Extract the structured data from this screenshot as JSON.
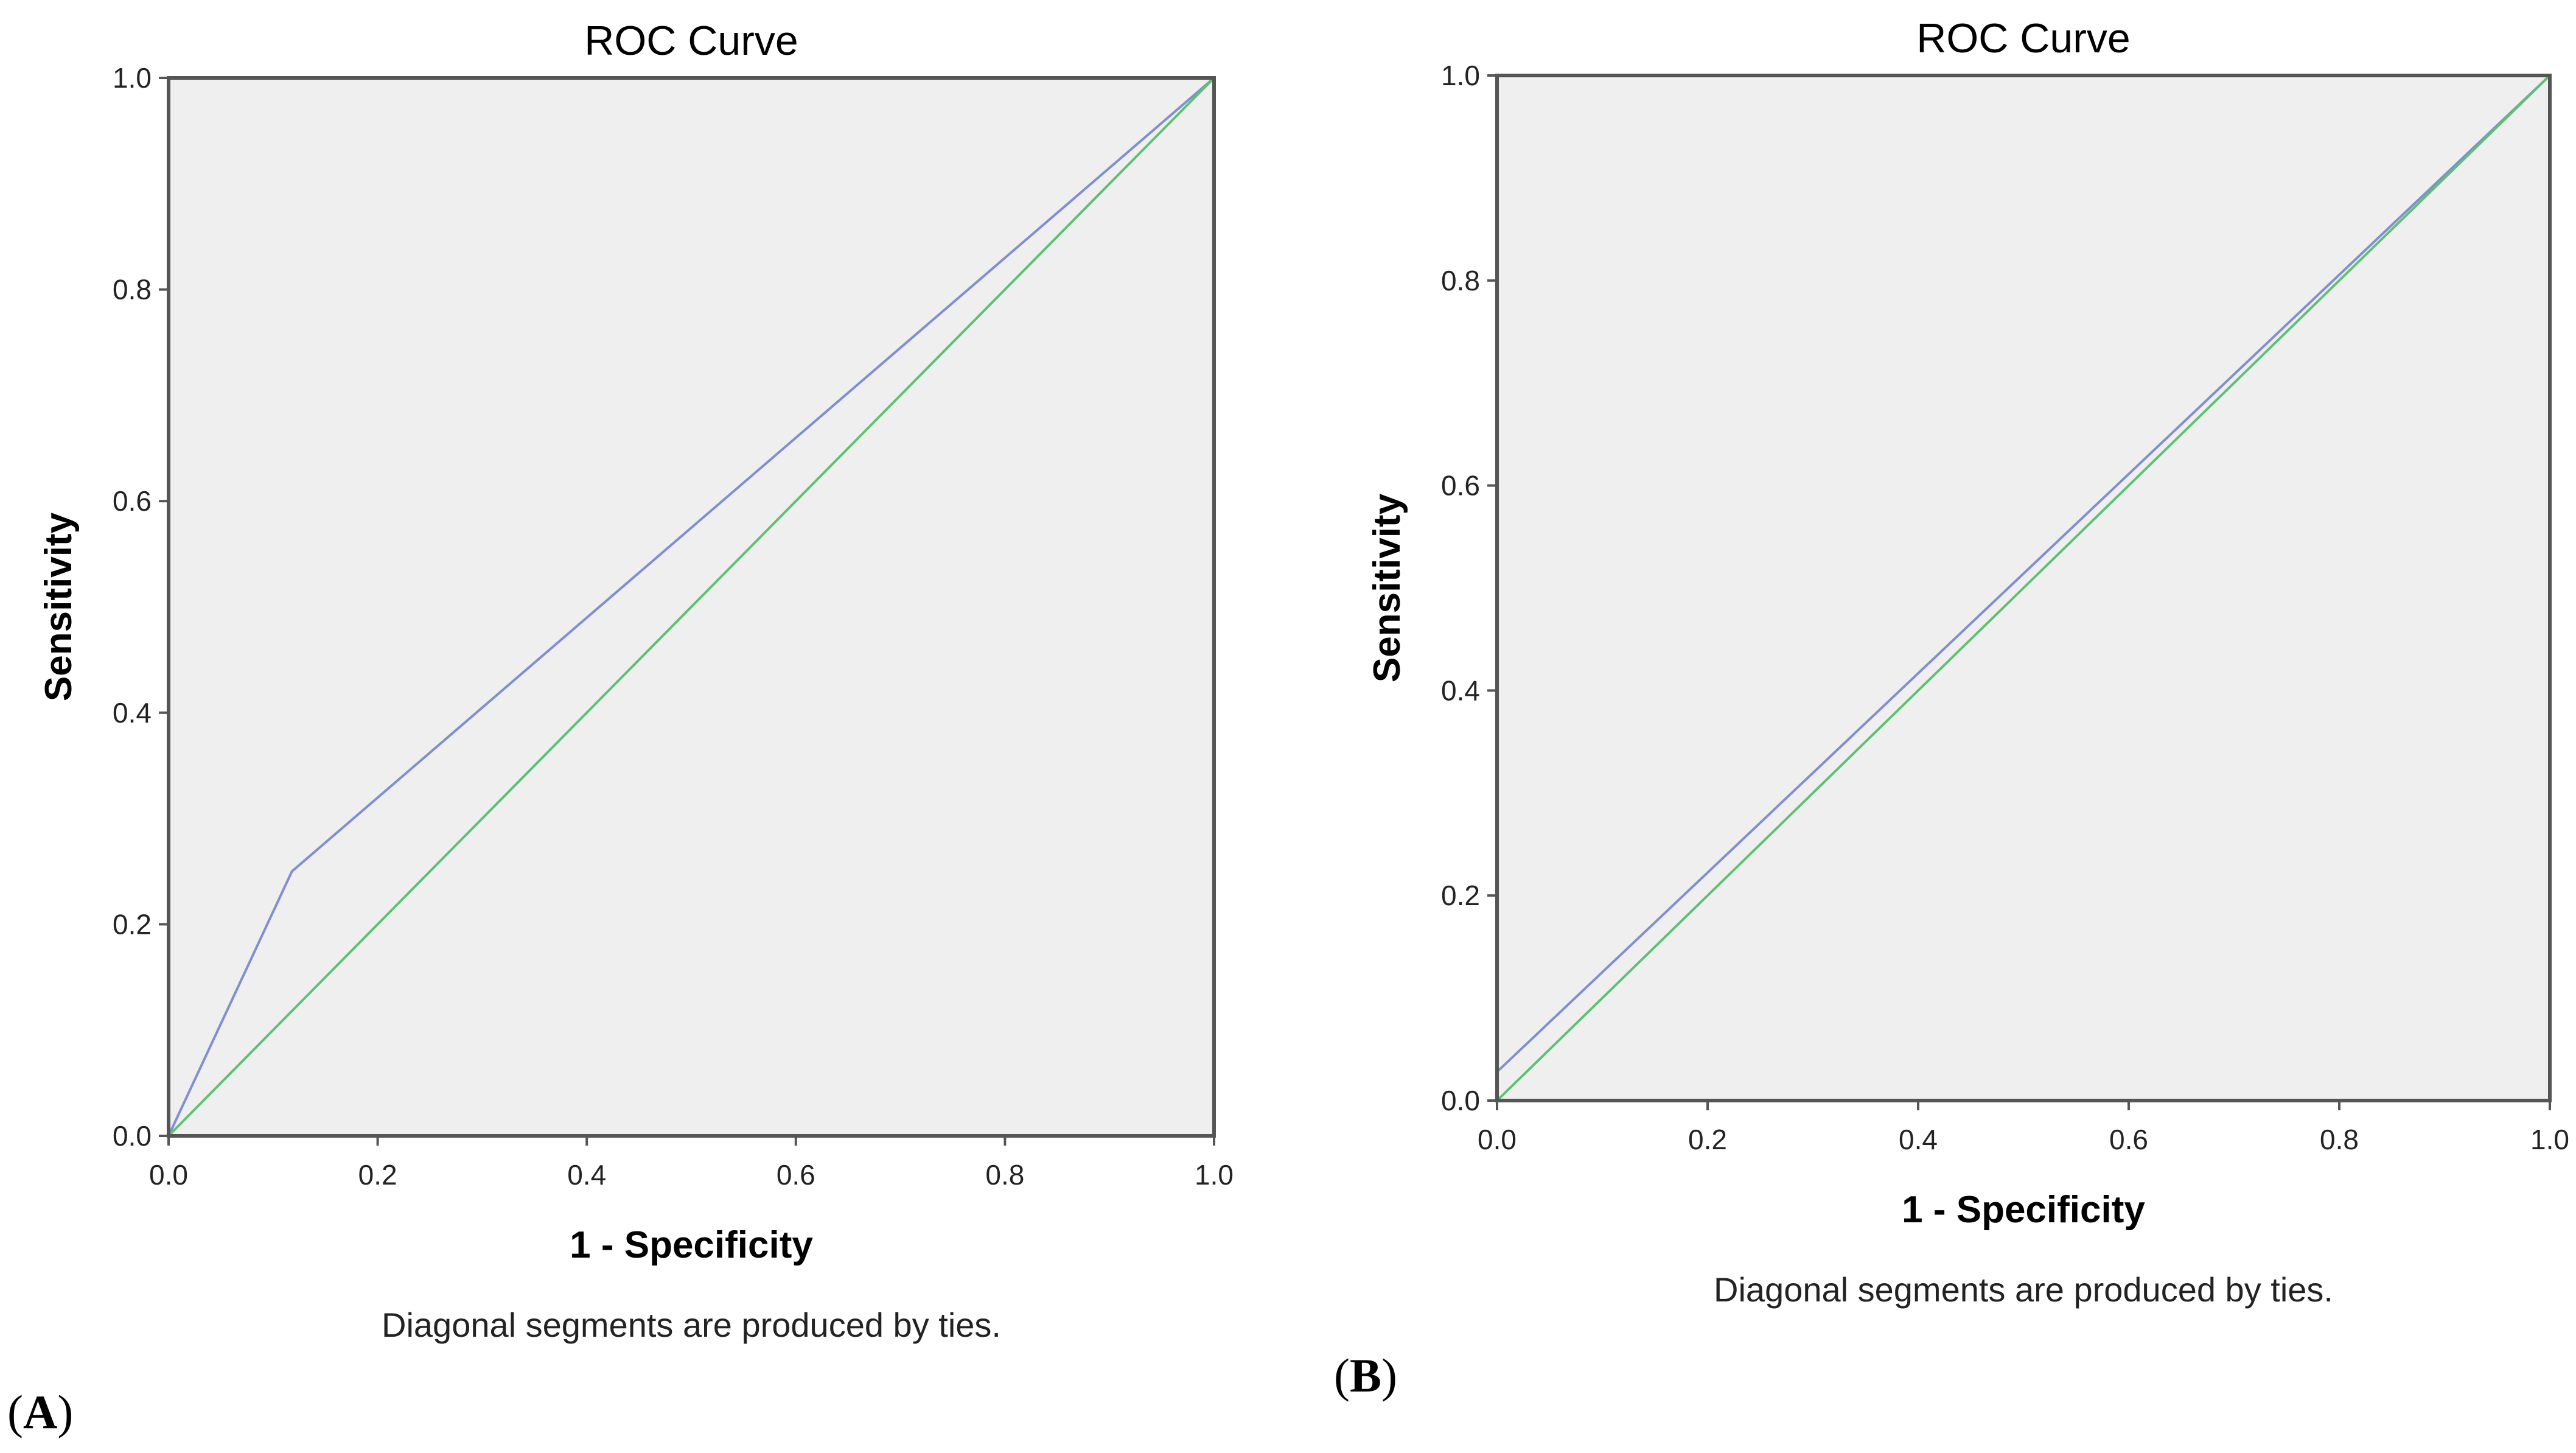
{
  "chart_data": [
    {
      "panel": "A",
      "type": "line",
      "title": "ROC Curve",
      "xlabel": "1 - Specificity",
      "ylabel": "Sensitivity",
      "xlim": [
        0,
        1
      ],
      "ylim": [
        0,
        1
      ],
      "x_ticks": [
        "0.0",
        "0.2",
        "0.4",
        "0.6",
        "0.8",
        "1.0"
      ],
      "y_ticks": [
        "0.0",
        "0.2",
        "0.4",
        "0.6",
        "0.8",
        "1.0"
      ],
      "footnote": "Diagonal segments are produced by ties.",
      "grid": false,
      "legend": "none",
      "plot_background": "#efefef",
      "series": [
        {
          "color": "#7f8fd0",
          "x": [
            0.0,
            0.118,
            1.0
          ],
          "y": [
            0.0,
            0.25,
            1.0
          ]
        },
        {
          "color": "#5cc271",
          "x": [
            0.0,
            1.0
          ],
          "y": [
            0.0,
            1.0
          ]
        }
      ]
    },
    {
      "panel": "B",
      "type": "line",
      "title": "ROC Curve",
      "xlabel": "1 - Specificity",
      "ylabel": "Sensitivity",
      "xlim": [
        0,
        1
      ],
      "ylim": [
        0,
        1
      ],
      "x_ticks": [
        "0.0",
        "0.2",
        "0.4",
        "0.6",
        "0.8",
        "1.0"
      ],
      "y_ticks": [
        "0.0",
        "0.2",
        "0.4",
        "0.6",
        "0.8",
        "1.0"
      ],
      "footnote": "Diagonal segments are produced by ties.",
      "grid": false,
      "legend": "none",
      "plot_background": "#efefef",
      "series": [
        {
          "color": "#7f8fd0",
          "x": [
            0.0,
            1.0
          ],
          "y": [
            0.028,
            1.0
          ]
        },
        {
          "color": "#5cc271",
          "x": [
            0.0,
            1.0
          ],
          "y": [
            0.0,
            1.0
          ]
        }
      ]
    }
  ],
  "labels": {
    "panel_a": "A",
    "panel_b": "B"
  }
}
